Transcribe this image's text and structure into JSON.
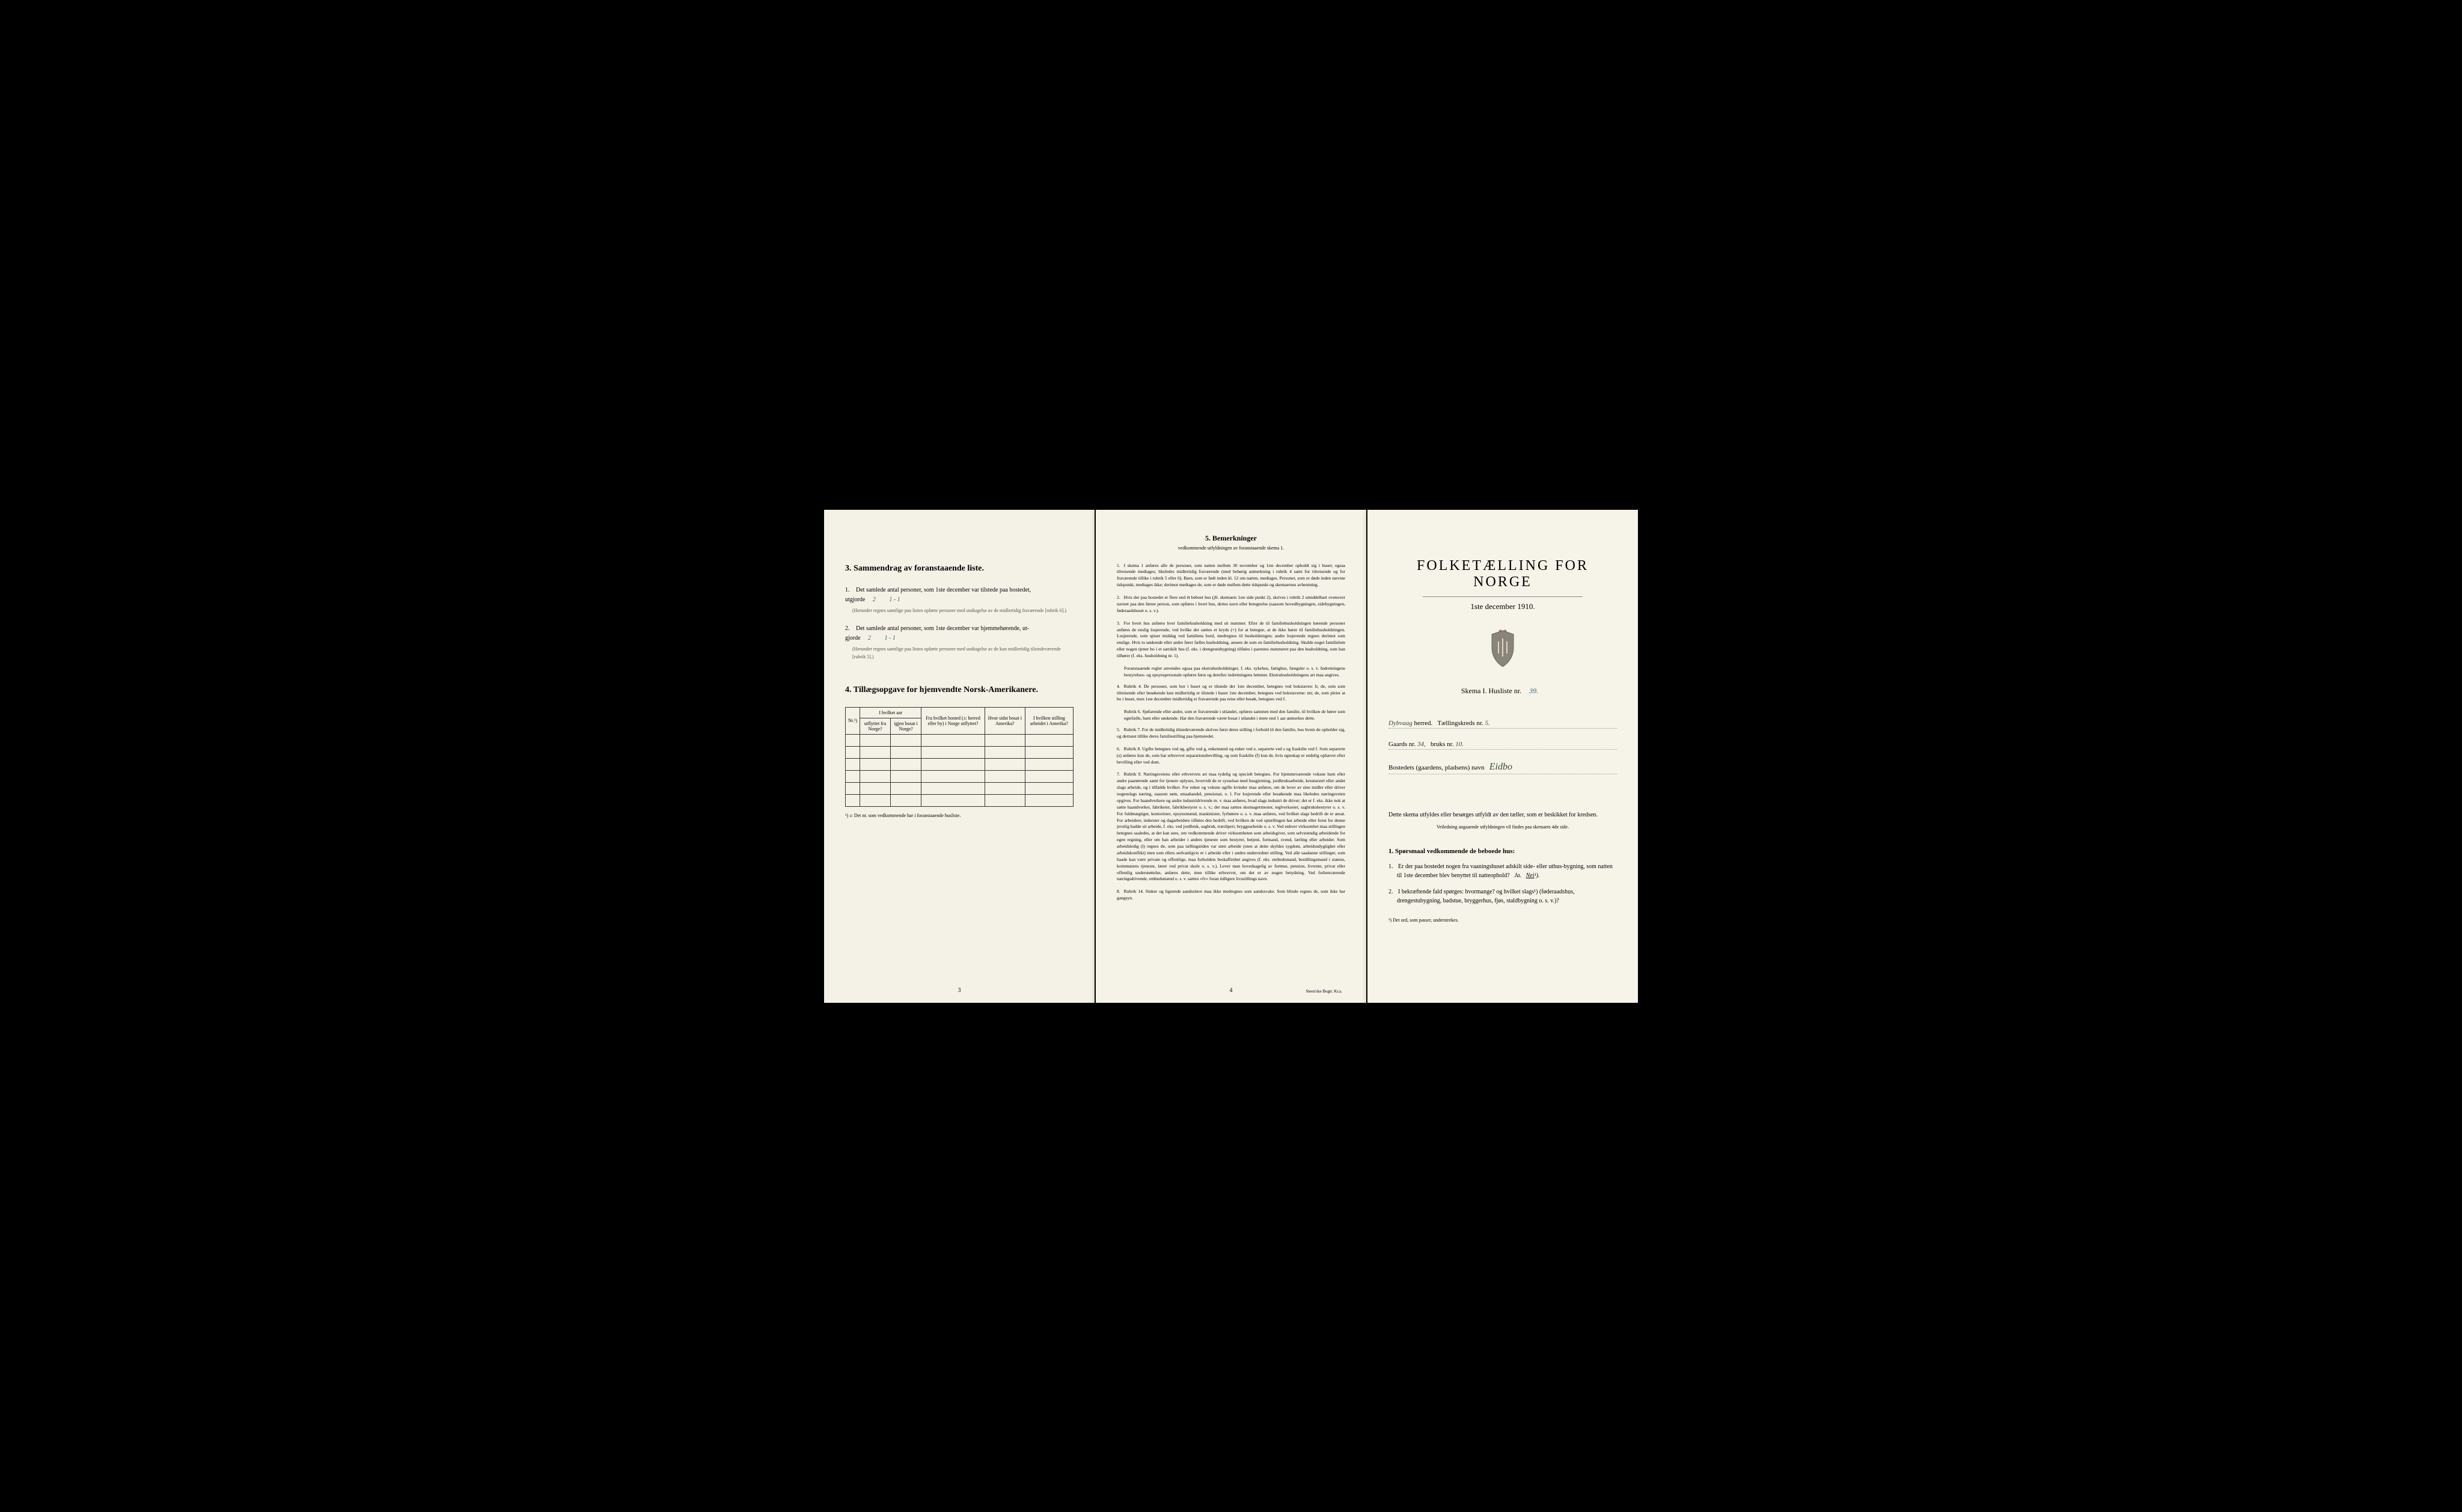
{
  "leftPage": {
    "section3": {
      "heading": "3.   Sammendrag av foranstaaende liste.",
      "item1": {
        "num": "1.",
        "text": "Det samlede antal personer, som 1ste december var tilstede paa bostedet,",
        "text2": "utgjorde",
        "value1": "2",
        "value2": "1 - 1",
        "note": "(Herunder regnes samtlige paa listen opførte personer med undtagelse av de midlertidig fraværende [rubrik 6].)"
      },
      "item2": {
        "num": "2.",
        "text": "Det samlede antal personer, som 1ste december var hjemmehørende, ut-",
        "text2": "gjorde",
        "value1": "2",
        "value2": "1 - 1",
        "note": "(Herunder regnes samtlige paa listen opførte personer med undtagelse av de kun midlertidig tilstedeværende [rubrik 5].)"
      }
    },
    "section4": {
      "heading": "4.   Tillægsopgave for hjemvendte Norsk-Amerikanere.",
      "columns": [
        "Nr.¹)",
        "I hvilket aar",
        "Fra hvilket bosted (ɔ: herred eller by) i Norge utflyttet?",
        "Hvor sidst bosat i Amerika?",
        "I hvilken stilling arbeidet i Amerika?"
      ],
      "subColumns": [
        "utflyttet fra Norge?",
        "igjen bosat i Norge?"
      ],
      "rowCount": 6,
      "footnote": "¹) ɔ: Det nr. som vedkommende har i foranstaaende husliste."
    },
    "pageNum": "3"
  },
  "centerPage": {
    "heading": "5.   Bemerkninger",
    "subheading": "vedkommende utfyldningen av foranstaaende skema 1.",
    "remarks": [
      {
        "num": "1.",
        "text": "I skema 1 anføres alle de personer, som natten mellem 30 november og 1ste december opholdt sig i huset; ogsaa tilreisende medtages; likeledes midlertidig fraværende (med behørig anmerkning i rubrik 4 samt for tilreisende og for fraværende tillike i rubrik 5 eller 6). Barn, som er født inden kl. 12 om natten, medtages. Personer, som er døde inden nævnte tidspunkt, medtages ikke; derimot medtages de, som er døde mellem dette tidspunkt og skemaernes avhentning."
      },
      {
        "num": "2.",
        "text": "Hvis der paa bostedet er flere end ét beboet hus (jfr. skemaets 1ste side punkt 2), skrives i rubrik 2 umiddelbart ovenover navnet paa den første person, som opføres i hvert hus, dettes navn eller betegnelse (saasom hovedbygningen, sidebygningen, føderaadshuset o. s. v.)."
      },
      {
        "num": "3.",
        "text": "For hvert hus anføres hver familiehusholdning med sit nummer. Efter de til familiehusholdningen hørende personer anføres de enslig losjerende, ved hvilke der sættes et kryds (×) for at betegne, at de ikke hører til familiehusholdningen. Losjerende, som spiser middag ved familiens bord, medregnes til husholdningen; andre losjerende regnes derimot som enslige. Hvis to søskende eller andre fører fælles husholdning, ansees de som en familiehusholdning. Skulde noget familielem eller nogen tjener bo i et særskilt hus (f. eks. i drengestubygning) tilføies i parentes nummeret paa den husholdning, som han tilhører (f. eks. husholdning nr. 1)."
      },
      {
        "num": "",
        "text": "Foranstaaende regler anvendes ogsaa paa ekstrahusholdninger, f. eks. sykehus, fattighus, fængsler o. s. v. Indretningens bestyrelses- og opsynspersonale opføres først og derefter indretningens lemmer. Ekstrahusholdningens art maa angives."
      },
      {
        "num": "4.",
        "text": "Rubrik 4. De personer, som bor i huset og er tilstede der 1ste december, betegnes ved bokstaven: b; de, som som tilreisende eller besøkende kun midlertidig er tilstede i huset 1ste december, betegnes ved bokstaverne: mt; de, som pleier at bo i huset, men 1ste december midlertidig er fraværende paa reise eller besøk, betegnes ved f."
      },
      {
        "num": "",
        "text": "Rubrik 6. Sjøfarende eller andre, som er fraværende i utlandet, opføres sammen med den familie, til hvilken de hører som egtefælle, barn eller søskende. Har den fraværende været bosat i utlandet i mere end 1 aar anmerkes dette."
      },
      {
        "num": "5.",
        "text": "Rubrik 7. For de midlertidig tilstedeværende skrives først deres stilling i forhold til den familie, hos hvem de opholder sig, og dernæst tillike deres familiestilling paa hjemstedet."
      },
      {
        "num": "6.",
        "text": "Rubrik 8. Ugifte betegnes ved ug, gifte ved g, enkemænd og enker ved e, separerte ved s og fraskilte ved f.  Som separerte (s) anføres kun de, som har erhvervet separationsbevilling, og som fraskilte (f) kun de, hvis egteskap er endelig ophævet efter bevilling eller ved dom."
      },
      {
        "num": "7.",
        "text": "Rubrik 9. Næringsveiens eller erhvervets art maa tydelig og specielt betegnes. For hjemmeværende voksne barn eller andre paarørende samt for tjenere oplyses, hvorvidt de er sysselsat med husgjerning, jordbruksarbeide, kreaturstel eller andet slags arbeide, og i tilfælde hvilket. For enker og voksne ugifte kvinder maa anføres, om de lever av sine midler eller driver nogenslags næring, saasom søm, smaahandel, pensionat, o. l. For losjerende eller besøkende maa likeledes næringsveien opgives. For haandverkere og andre industridrivende m. v. maa anføres, hvad slags industri de driver; det er f. eks. ikke nok at sætte haandverker, fabrikeier, fabrikbestyrer o. s. v.; der maa sættes skomagermester, teglverkseier, sagbruksbestyrer o. s. v. For fuldmægtiger, kontorister, opsynsmænd, maskinister, fyrbøtere o. s. v. maa anføres, ved hvilket slags bedrift de er ansat. For arbeidere, inderster og dagarbeidere tilføies den bedrift, ved hvilken de ved optællingen har arbeide eller forut for denne jevnlig hadde sit arbeide, f. eks. ved jordbruk, sagbruk, træsliperi, bryggearbeide o. s. v. Ved enhver virksomhet maa stillingen betegnes saaledes, at det kan sees, om vedkommende driver virksomheten som arbeidsgiver, som selvstændig arbeidende for egen regning, eller om han arbeider i andres tjeneste som bestyrer, betjent, formand, svend, lærling eller arbeider. Som arbeidsledig (l) regnes de, som paa tællingstiden var uten arbeide (uten at dette skyldes sygdom, arbeidsudygtighet eller arbeidskonflikt) men som ellers sedvanligvis er i arbeide eller i anden underordnet stilling. Ved alle saadanne stillinger, som baade kan være private og offentlige, maa forholdets beskaffenhet angives (f. eks. embedsmand, bestillingsmand i statens, kommunens tjeneste, lærer ved privat skole o. s. v.). Lever man hovedsagelig av formue, pension, livrente, privat eller offentlig understøttelse, anføres dette, men tillike erhvervet, om det er av nogen betydning. Ved forhenværende næringsdrivende, embedsmænd o. s. v. sættes «fv» foran tidligere livsstillings navn."
      },
      {
        "num": "8.",
        "text": "Rubrik 14. Sinker og lignende aandssløve maa ikke medregnes som aandssvake. Som blinde regnes de, som ikke har gangsyn."
      }
    ],
    "pageNum": "4",
    "printer": "Steen'ske Bogtr. Kr.a."
  },
  "rightPage": {
    "title": "FOLKETÆLLING FOR NORGE",
    "date": "1ste december 1910.",
    "skema": "Skema I.  Husliste nr.",
    "skemaValue": "39.",
    "herred": {
      "label": "herred.",
      "value": "Dybvaag"
    },
    "kreds": {
      "label": "Tællingskreds nr.",
      "value": "5."
    },
    "gaards": {
      "label": "Gaards nr.",
      "value": "34,"
    },
    "bruks": {
      "label": "bruks nr.",
      "value": "10."
    },
    "bosted": {
      "label": "Bostedets (gaardens, pladsens) navn",
      "value": "Eidbo"
    },
    "instruction": "Dette skema utfyldes eller besørges utfyldt av den tæller, som er beskikket for kredsen.",
    "instructionSmall": "Veiledning angaaende utfyldningen vil findes paa skemaets 4de side.",
    "questionsHeading": "1. Spørsmaal vedkommende de beboede hus:",
    "question1": {
      "num": "1.",
      "text": "Er der paa bostedet nogen fra vaaningshuset adskilt side- eller uthus-bygning, som natten til 1ste december blev benyttet til natteophold?",
      "options": "Ja.  Nei¹)."
    },
    "question2": {
      "num": "2.",
      "text": "I bekræftende fald spørges: hvormange?           og hvilket slags¹) (føderaadshus, drengestubygning, badstue, bryggerhus, fjøs, staldbygning o. s. v.)?"
    },
    "footnote": "¹) Det ord, som passer, understrekes."
  }
}
